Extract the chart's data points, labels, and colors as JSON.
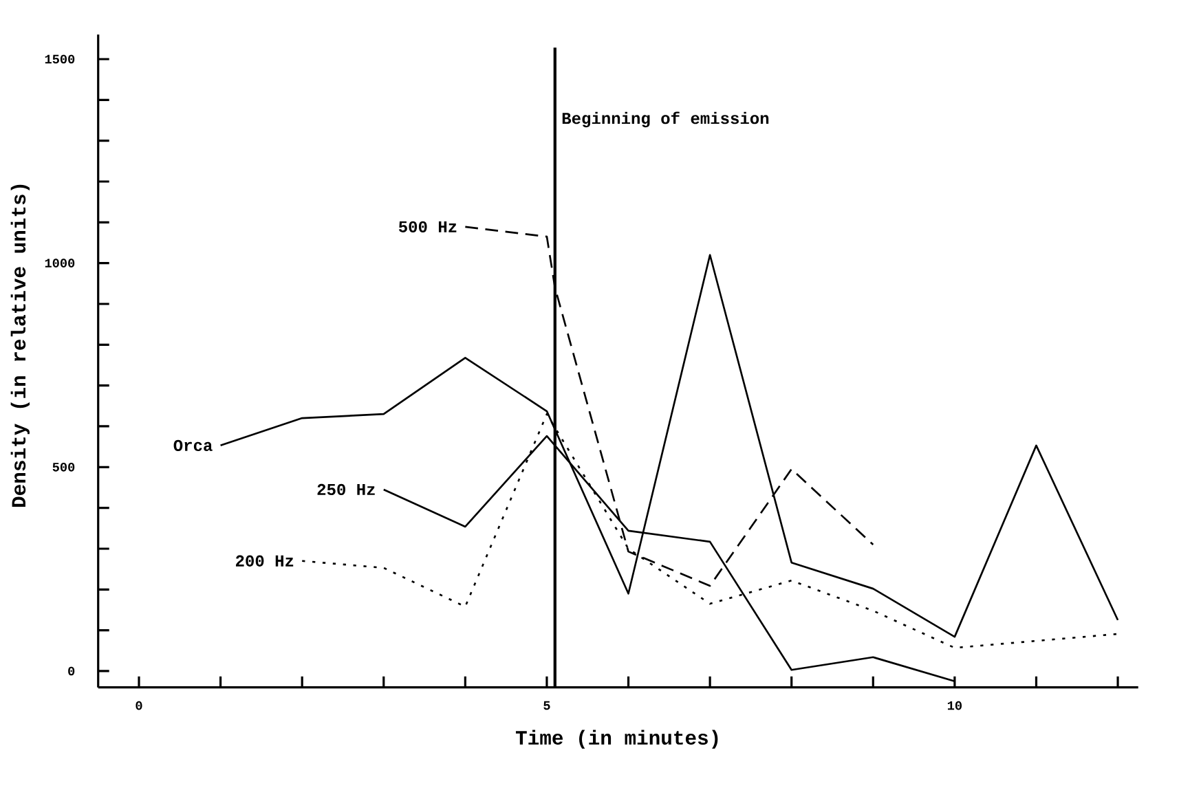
{
  "chart_data": {
    "type": "line",
    "xlabel": "Time (in minutes)",
    "ylabel": "Density (in relative units)",
    "xlim": [
      -0.5,
      12.25
    ],
    "ylim": [
      -40,
      1560
    ],
    "xticks": [
      0,
      {
        "value": 1,
        "label": null
      },
      {
        "value": 2,
        "label": null
      },
      {
        "value": 3,
        "label": null
      },
      {
        "value": 4,
        "label": null
      },
      5,
      {
        "value": 6,
        "label": null
      },
      {
        "value": 7,
        "label": null
      },
      {
        "value": 8,
        "label": null
      },
      {
        "value": 9,
        "label": null
      },
      10,
      {
        "value": 11,
        "label": null
      },
      {
        "value": 12,
        "label": null
      }
    ],
    "yticks": [
      0,
      {
        "value": 100,
        "label": null
      },
      {
        "value": 200,
        "label": null
      },
      {
        "value": 300,
        "label": null
      },
      {
        "value": 400,
        "label": null
      },
      500,
      {
        "value": 600,
        "label": null
      },
      {
        "value": 700,
        "label": null
      },
      {
        "value": 800,
        "label": null
      },
      {
        "value": 900,
        "label": null
      },
      1000,
      {
        "value": 1100,
        "label": null
      },
      {
        "value": 1200,
        "label": null
      },
      {
        "value": 1300,
        "label": null
      },
      {
        "value": 1400,
        "label": null
      },
      1500
    ],
    "grid": false,
    "marker": "none",
    "series": [
      {
        "name": "Orca",
        "color": "#000000",
        "line_style": "solid",
        "x": [
          1,
          2,
          3,
          4,
          5,
          6,
          7,
          8,
          9,
          10,
          11,
          12
        ],
        "values": [
          553,
          620,
          630,
          768,
          637,
          190,
          1020,
          266,
          202,
          84,
          553,
          125
        ]
      },
      {
        "name": "250 Hz",
        "color": "#000000",
        "line_style": "solid",
        "x": [
          3,
          4,
          5,
          6,
          7,
          8,
          9,
          10
        ],
        "values": [
          445,
          354,
          576,
          344,
          317,
          3,
          34,
          -25
        ]
      },
      {
        "name": "500 Hz",
        "color": "#000000",
        "line_style": "dashed",
        "x": [
          4,
          5,
          5.1,
          6,
          7,
          8,
          9
        ],
        "values": [
          1089,
          1065,
          940,
          293,
          209,
          495,
          310
        ]
      },
      {
        "name": "200 Hz",
        "color": "#000000",
        "line_style": "dotted",
        "x": [
          2,
          3,
          4,
          5,
          6,
          7,
          8,
          9,
          10,
          11,
          12
        ],
        "values": [
          270,
          253,
          158,
          630,
          300,
          165,
          222,
          148,
          57,
          74,
          91
        ]
      }
    ],
    "ref_lines": [
      {
        "axis": "x",
        "value": 5.1,
        "label": "Beginning of emission",
        "color": "#000000"
      }
    ]
  }
}
